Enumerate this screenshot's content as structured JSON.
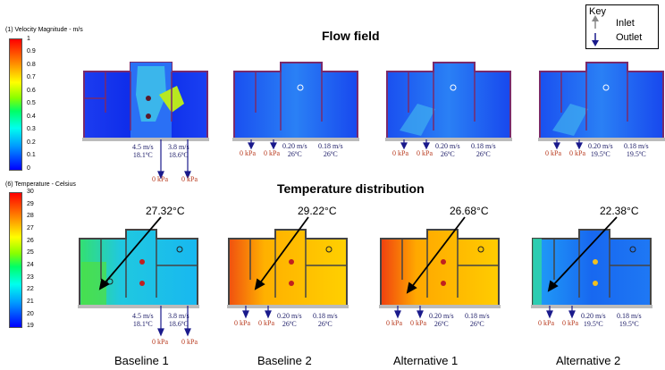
{
  "velocity_scale": {
    "title": "(1) Velocity Magnitude - m/s",
    "ticks": [
      "1",
      "0.9",
      "0.8",
      "0.7",
      "0.6",
      "0.5",
      "0.4",
      "0.3",
      "0.2",
      "0.1",
      "0"
    ]
  },
  "temperature_scale": {
    "title": "(6) Temperature - Celsius",
    "ticks": [
      "30",
      "29",
      "28",
      "27",
      "26",
      "25",
      "24",
      "23",
      "22",
      "21",
      "20",
      "19"
    ]
  },
  "titles": {
    "flow": "Flow field",
    "temperature": "Temperature distribution"
  },
  "key": {
    "title": "Key",
    "inlet": "Inlet",
    "outlet": "Outlet"
  },
  "cases": [
    {
      "name": "Baseline 1",
      "temp_callout": "27.32°C",
      "outlets": [
        {
          "velocity": "4.5 m/s",
          "temp": "18.1ºC"
        },
        {
          "velocity": "3.8 m/s",
          "temp": "18.6ºC"
        }
      ],
      "pressures": [
        "0 kPa",
        "0 kPa"
      ]
    },
    {
      "name": "Baseline 2",
      "temp_callout": "29.22°C",
      "outlets": [
        {
          "velocity": "0.20 m/s",
          "temp": "26ºC"
        },
        {
          "velocity": "0.18 m/s",
          "temp": "26ºC"
        }
      ],
      "pressures": [
        "0 kPa",
        "0 kPa"
      ]
    },
    {
      "name": "Alternative  1",
      "temp_callout": "26.68°C",
      "outlets": [
        {
          "velocity": "0.20 m/s",
          "temp": "26ºC"
        },
        {
          "velocity": "0.18 m/s",
          "temp": "26ºC"
        }
      ],
      "pressures": [
        "0 kPa",
        "0 kPa"
      ]
    },
    {
      "name": "Alternative  2",
      "temp_callout": "22.38°C",
      "outlets": [
        {
          "velocity": "0.20 m/s",
          "temp": "19.5ºC"
        },
        {
          "velocity": "0.18 m/s",
          "temp": "19.5ºC"
        }
      ],
      "pressures": [
        "0 kPa",
        "0 kPa"
      ]
    }
  ]
}
